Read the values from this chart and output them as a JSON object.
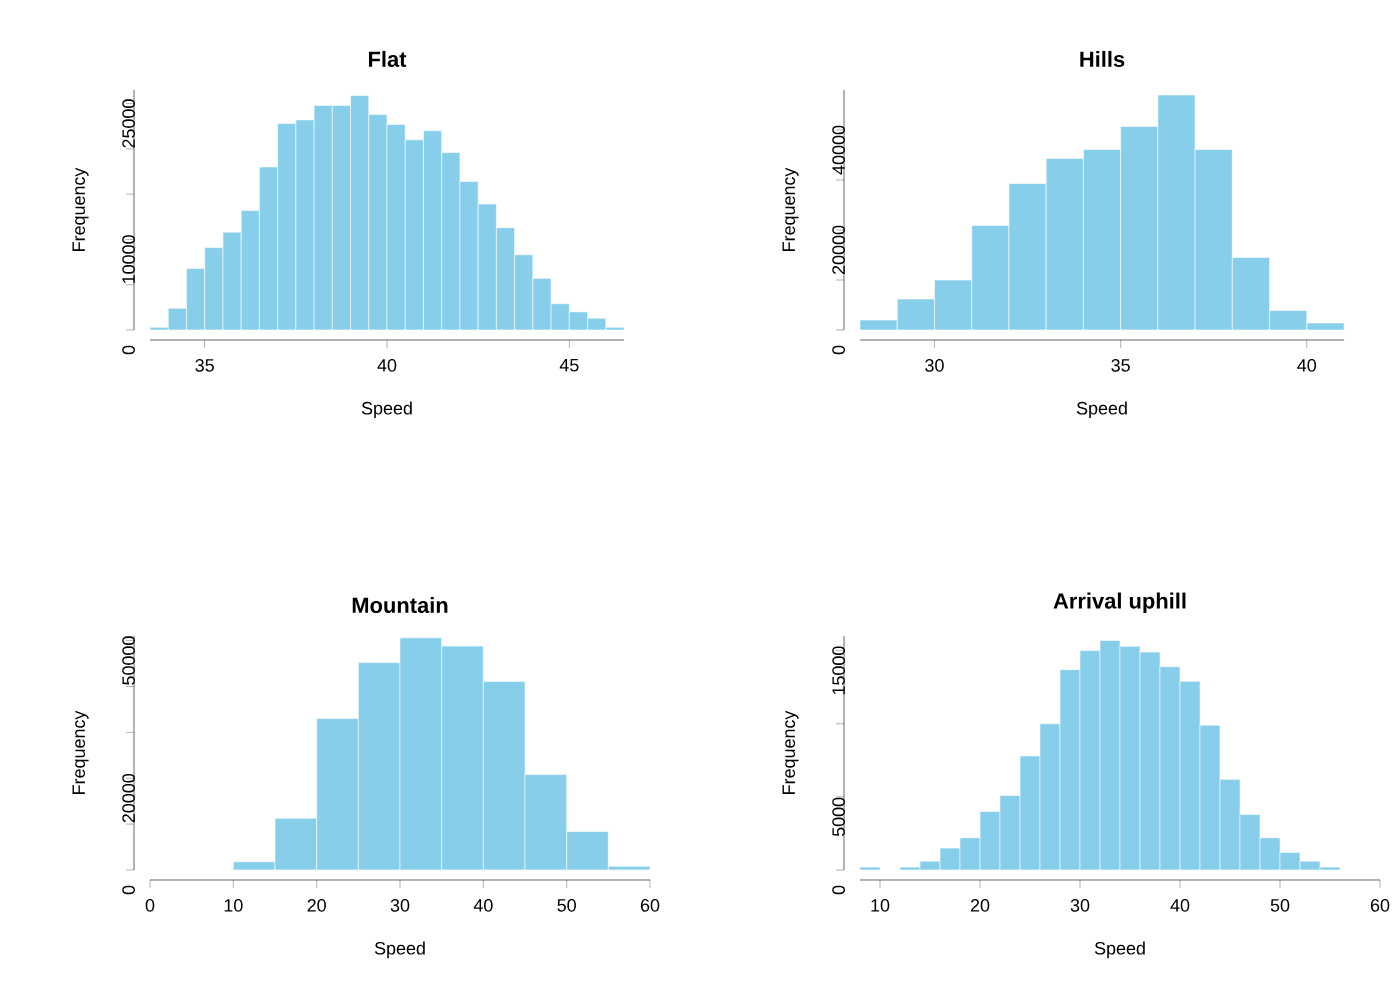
{
  "chart_data": [
    {
      "type": "histogram",
      "title": "Flat",
      "xlabel": "Speed",
      "ylabel": "Frequency",
      "color": "#87ceeb",
      "bins": [
        33.5,
        34,
        34.5,
        35,
        35.5,
        36,
        36.5,
        37,
        37.5,
        38,
        38.5,
        39,
        39.5,
        40,
        40.5,
        41,
        41.5,
        42,
        42.5,
        43,
        43.5,
        44,
        44.5,
        45,
        45.5,
        46,
        46.5
      ],
      "values": [
        300,
        2400,
        6800,
        9100,
        10800,
        13200,
        18000,
        22800,
        23200,
        24800,
        24800,
        25900,
        23800,
        22700,
        21000,
        22000,
        19600,
        16400,
        13900,
        11300,
        8300,
        5700,
        2900,
        2000,
        1300,
        300
      ],
      "xlim": [
        33.5,
        46.5
      ],
      "ylim": [
        0,
        26500
      ],
      "xticks": [
        35,
        40,
        45
      ],
      "yticks": [
        0,
        {
          "value": 5000,
          "label": null
        },
        10000,
        {
          "value": 15000,
          "label": null
        },
        {
          "value": 20000,
          "label": null
        },
        25000
      ]
    },
    {
      "type": "histogram",
      "title": "Hills",
      "xlabel": "Speed",
      "ylabel": "Frequency",
      "color": "#87ceeb",
      "bins": [
        28,
        29,
        30,
        31,
        32,
        33,
        34,
        35,
        36,
        37,
        38,
        39,
        40,
        41
      ],
      "values": [
        2000,
        6200,
        10000,
        20900,
        29300,
        34300,
        36100,
        40700,
        47000,
        36100,
        14500,
        3900,
        1400
      ],
      "xlim": [
        28,
        41
      ],
      "ylim": [
        0,
        48000
      ],
      "xticks": [
        30,
        35,
        40
      ],
      "yticks": [
        0,
        {
          "value": 10000,
          "label": null
        },
        20000,
        {
          "value": 30000,
          "label": null
        },
        40000
      ]
    },
    {
      "type": "histogram",
      "title": "Mountain",
      "xlabel": "Speed",
      "ylabel": "Frequency",
      "color": "#87ceeb",
      "bins": [
        10,
        15,
        20,
        25,
        30,
        35,
        40,
        45,
        50,
        55,
        60
      ],
      "values": [
        1800,
        11300,
        33000,
        45200,
        50600,
        48800,
        41100,
        20800,
        8400,
        800
      ],
      "xlim": [
        0,
        60
      ],
      "ylim": [
        0,
        51000
      ],
      "xticks": [
        0,
        10,
        20,
        30,
        40,
        50,
        60
      ],
      "yticks": [
        0,
        {
          "value": 10000,
          "label": null
        },
        20000,
        {
          "value": 30000,
          "label": null
        },
        {
          "value": 40000,
          "label": null
        },
        50000
      ]
    },
    {
      "type": "histogram",
      "title": "Arrival uphill",
      "xlabel": "Speed",
      "ylabel": "Frequency",
      "color": "#87ceeb",
      "bins": [
        8,
        10,
        12,
        14,
        16,
        18,
        20,
        22,
        24,
        26,
        28,
        30,
        32,
        34,
        36,
        38,
        40,
        42,
        44,
        46,
        48,
        50,
        52,
        54,
        56
      ],
      "values": [
        200,
        0,
        200,
        600,
        1500,
        2200,
        4000,
        5100,
        7800,
        10000,
        13700,
        15000,
        15700,
        15300,
        14900,
        13900,
        12900,
        9900,
        6200,
        3800,
        2200,
        1200,
        600,
        200
      ],
      "xlim": [
        8,
        60
      ],
      "ylim": [
        0,
        16000
      ],
      "xticks": [
        10,
        20,
        30,
        40,
        50,
        60
      ],
      "yticks": [
        0,
        5000,
        {
          "value": 10000,
          "label": null
        },
        15000
      ]
    }
  ]
}
